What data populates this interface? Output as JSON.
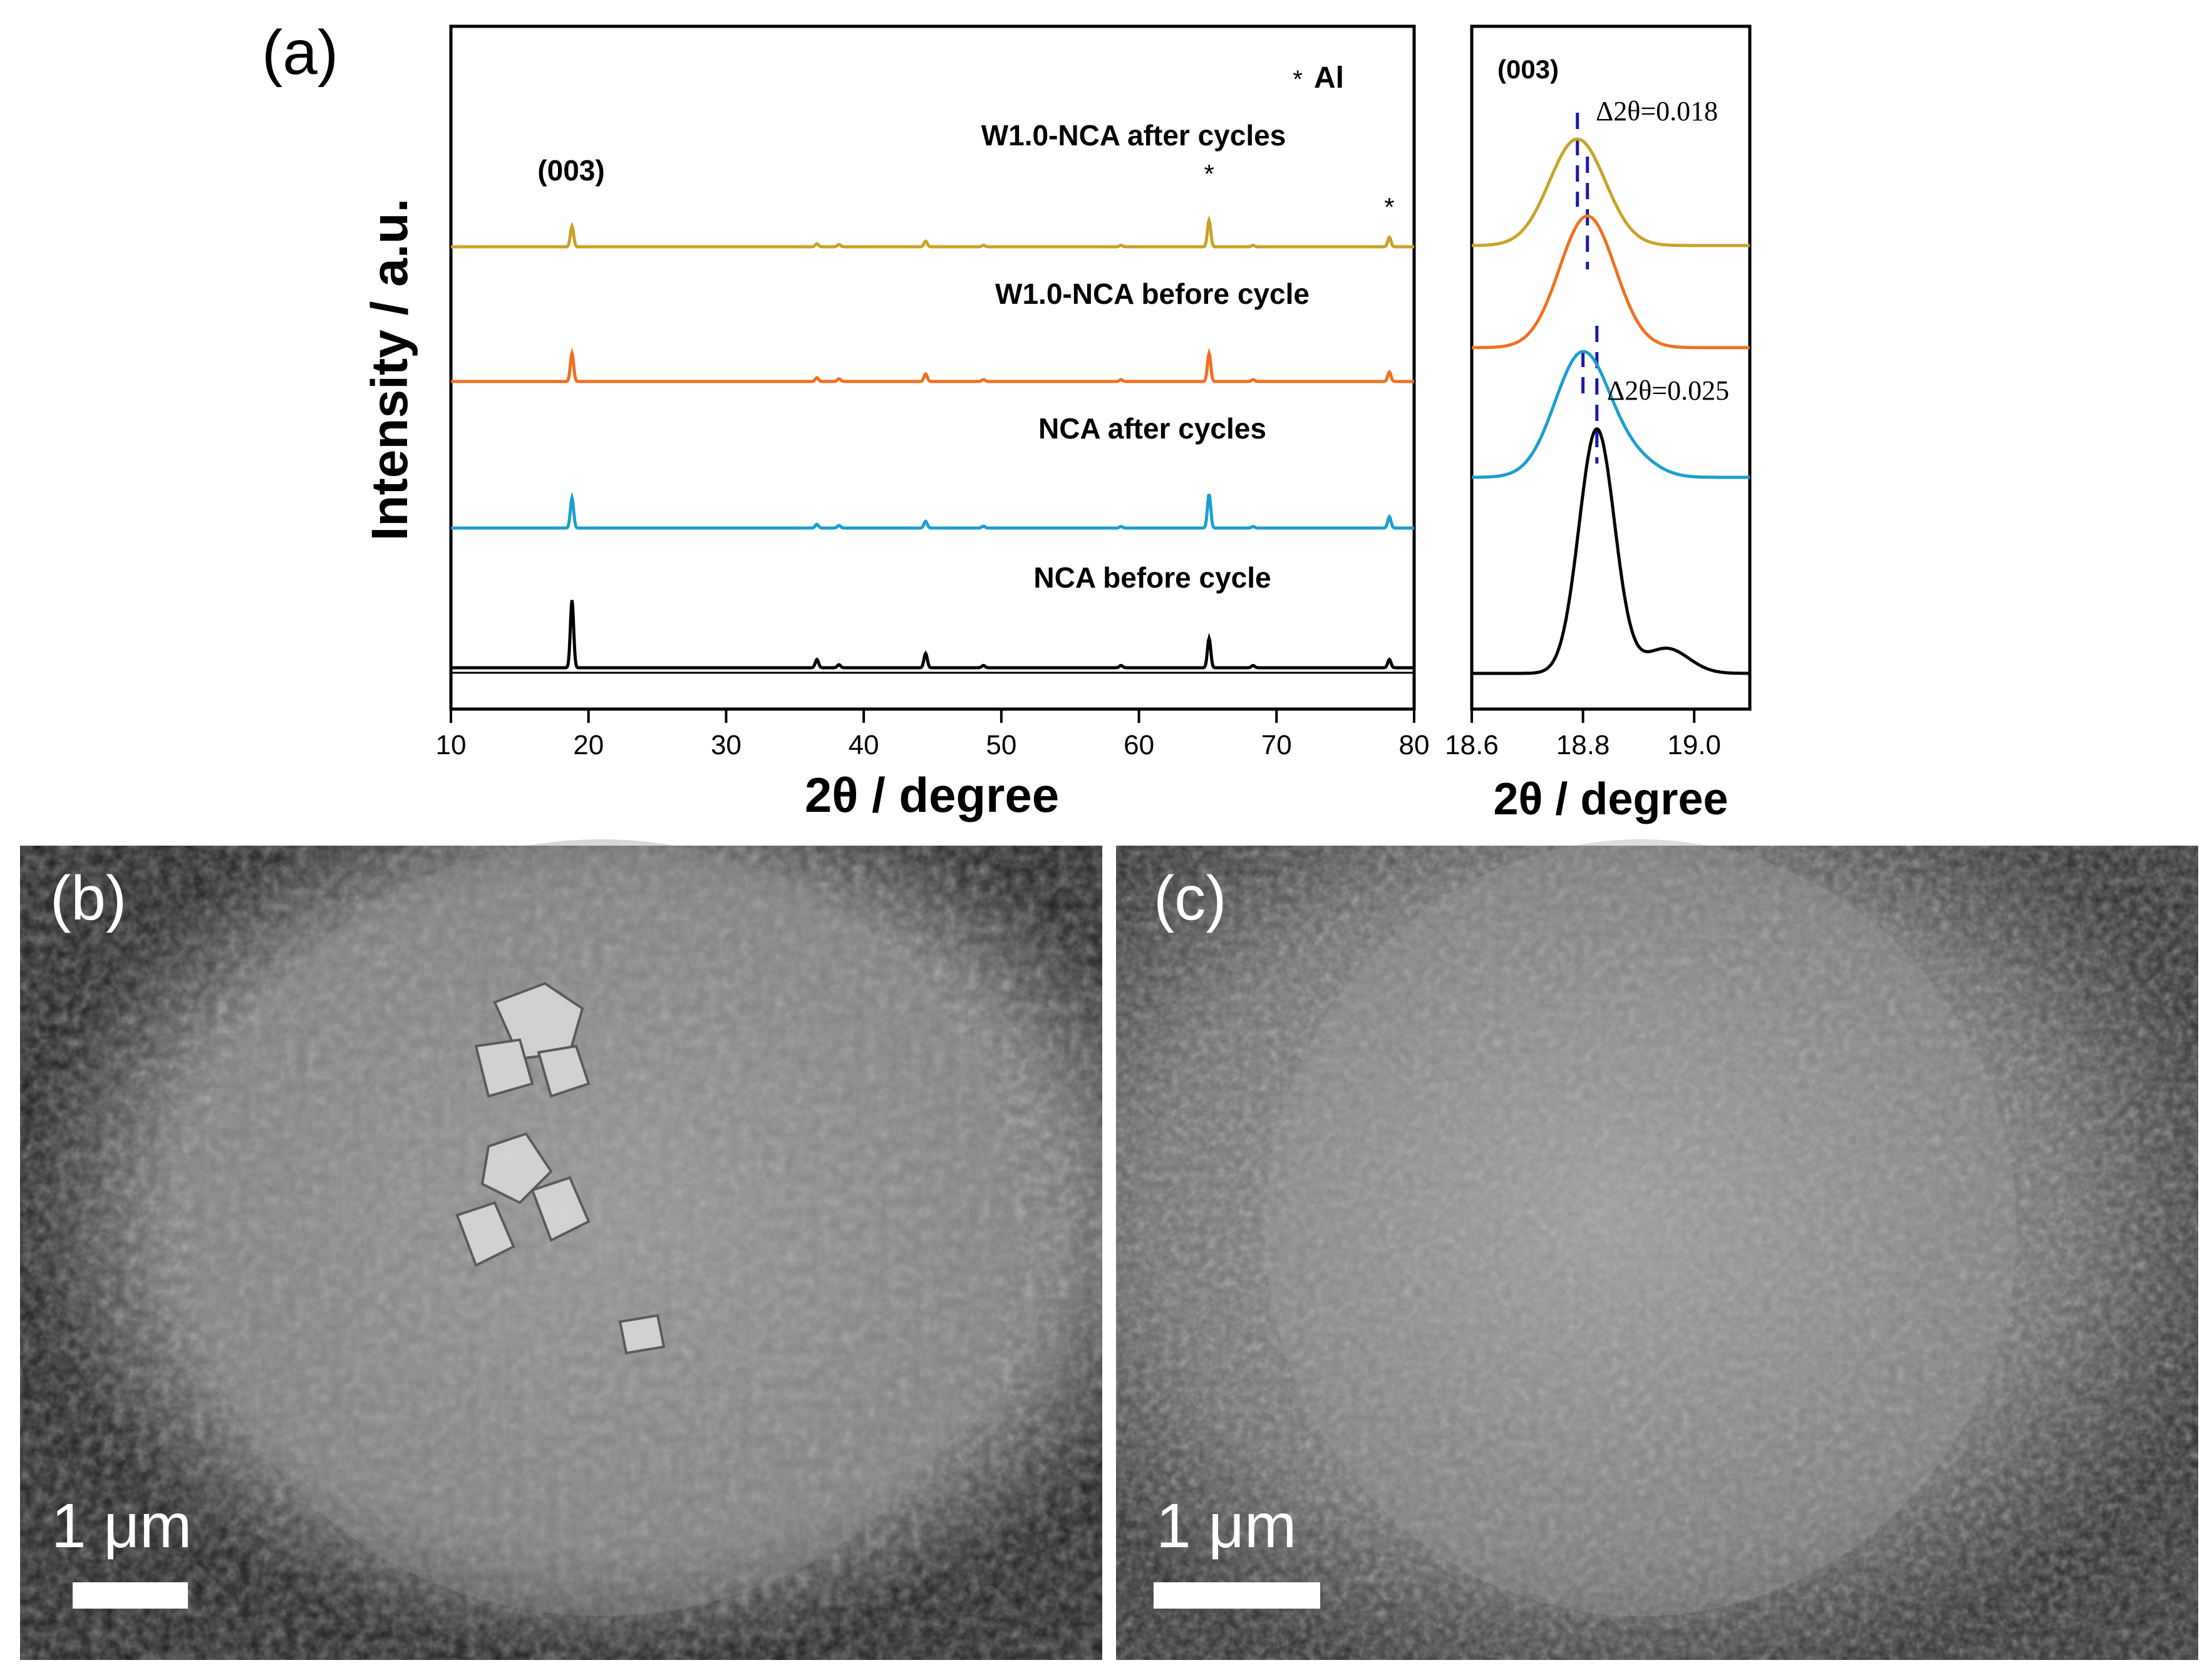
{
  "panel_labels": {
    "a": "(a)",
    "b": "(b)",
    "c": "(c)"
  },
  "chart_data": [
    {
      "type": "line",
      "ylabel": "Intensity / a.u.",
      "xlabel": "2θ / degree",
      "xlim": [
        10,
        80
      ],
      "xticks": [
        "10",
        "20",
        "30",
        "40",
        "50",
        "60",
        "70",
        "80"
      ],
      "legend_marker": "*",
      "legend_label": "Al",
      "peak_label": "(003)",
      "peak_marks": [
        "*",
        "*"
      ],
      "peak_mark_positions": [
        65.1,
        78.2
      ],
      "series": [
        {
          "name": "W1.0-NCA after cycles",
          "color": "#c9a227",
          "offset": 3,
          "peaks": [
            [
              18.8,
              0.55
            ],
            [
              36.6,
              0.08
            ],
            [
              38.2,
              0.06
            ],
            [
              44.5,
              0.15
            ],
            [
              48.7,
              0.04
            ],
            [
              58.7,
              0.04
            ],
            [
              65.1,
              0.7
            ],
            [
              68.3,
              0.04
            ],
            [
              78.2,
              0.25
            ]
          ]
        },
        {
          "name": "W1.0-NCA before cycle",
          "color": "#f07020",
          "offset": 2,
          "peaks": [
            [
              18.8,
              0.75
            ],
            [
              36.6,
              0.1
            ],
            [
              38.2,
              0.07
            ],
            [
              44.5,
              0.2
            ],
            [
              48.7,
              0.05
            ],
            [
              58.7,
              0.05
            ],
            [
              65.1,
              0.75
            ],
            [
              68.3,
              0.05
            ],
            [
              78.2,
              0.25
            ]
          ]
        },
        {
          "name": "NCA after cycles",
          "color": "#1a9fcf",
          "offset": 1,
          "peaks": [
            [
              18.8,
              0.8
            ],
            [
              36.6,
              0.1
            ],
            [
              38.2,
              0.07
            ],
            [
              44.5,
              0.18
            ],
            [
              48.7,
              0.05
            ],
            [
              58.7,
              0.04
            ],
            [
              65.1,
              0.9
            ],
            [
              68.3,
              0.04
            ],
            [
              78.2,
              0.3
            ]
          ]
        },
        {
          "name": "NCA before cycle",
          "color": "#000000",
          "offset": 0,
          "peaks": [
            [
              18.8,
              1.8
            ],
            [
              36.6,
              0.22
            ],
            [
              38.2,
              0.08
            ],
            [
              44.5,
              0.38
            ],
            [
              48.7,
              0.06
            ],
            [
              58.7,
              0.06
            ],
            [
              65.1,
              0.78
            ],
            [
              68.3,
              0.06
            ],
            [
              78.2,
              0.22
            ]
          ]
        }
      ]
    },
    {
      "type": "line",
      "xlabel": "2θ / degree",
      "xlim": [
        18.6,
        19.1
      ],
      "xticks": [
        "18.6",
        "18.8",
        "19.0"
      ],
      "peak_label": "(003)",
      "annotations": [
        "Δ2θ=0.018",
        "Δ2θ=0.025"
      ],
      "series": [
        {
          "name": "W1.0-NCA after cycles",
          "color": "#c9a227",
          "center": 18.79,
          "offset": 3
        },
        {
          "name": "W1.0-NCA before cycle",
          "color": "#f07020",
          "center": 18.808,
          "offset": 2
        },
        {
          "name": "NCA after cycles",
          "color": "#1a9fcf",
          "center": 18.8,
          "offset": 1
        },
        {
          "name": "NCA before cycle",
          "color": "#000000",
          "center": 18.825,
          "offset": 0
        }
      ],
      "dashed_lines": [
        18.79,
        18.808,
        18.8,
        18.825
      ]
    }
  ],
  "sem": {
    "b_scale": "1 μm",
    "c_scale": "1 μm"
  }
}
